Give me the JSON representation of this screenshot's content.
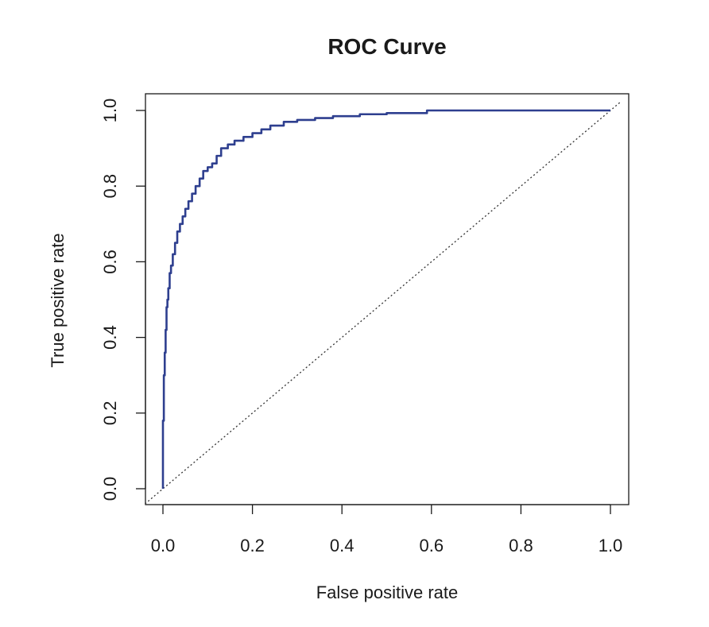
{
  "chart_data": {
    "type": "line",
    "title": "ROC Curve",
    "xlabel": "False positive rate",
    "ylabel": "True positive rate",
    "xlim": [
      0,
      1
    ],
    "ylim": [
      0,
      1
    ],
    "x_ticks": [
      "0.0",
      "0.2",
      "0.4",
      "0.6",
      "0.8",
      "1.0"
    ],
    "y_ticks": [
      "0.0",
      "0.2",
      "0.4",
      "0.6",
      "0.8",
      "1.0"
    ],
    "grid": false,
    "legend": "none",
    "colors": {
      "curve": "#2e3f8f",
      "reference": "#333333",
      "axis": "#1a1a1a"
    },
    "series": [
      {
        "x": [
          0.0,
          0.0,
          0.002,
          0.004,
          0.006,
          0.008,
          0.01,
          0.012,
          0.015,
          0.018,
          0.022,
          0.027,
          0.032,
          0.038,
          0.044,
          0.05,
          0.057,
          0.065,
          0.073,
          0.082,
          0.09,
          0.1,
          0.11,
          0.12,
          0.13,
          0.145,
          0.16,
          0.18,
          0.2,
          0.22,
          0.24,
          0.27,
          0.3,
          0.34,
          0.38,
          0.44,
          0.5,
          0.59,
          0.7,
          0.8,
          1.0
        ],
        "y": [
          0.0,
          0.18,
          0.3,
          0.36,
          0.42,
          0.48,
          0.5,
          0.53,
          0.57,
          0.59,
          0.62,
          0.65,
          0.68,
          0.7,
          0.72,
          0.74,
          0.76,
          0.78,
          0.8,
          0.82,
          0.84,
          0.85,
          0.86,
          0.88,
          0.9,
          0.91,
          0.92,
          0.93,
          0.94,
          0.95,
          0.96,
          0.97,
          0.975,
          0.98,
          0.985,
          0.99,
          0.993,
          1.0,
          1.0,
          1.0,
          1.0
        ]
      },
      {
        "x": [
          0,
          1
        ],
        "y": [
          0,
          1
        ]
      }
    ]
  }
}
